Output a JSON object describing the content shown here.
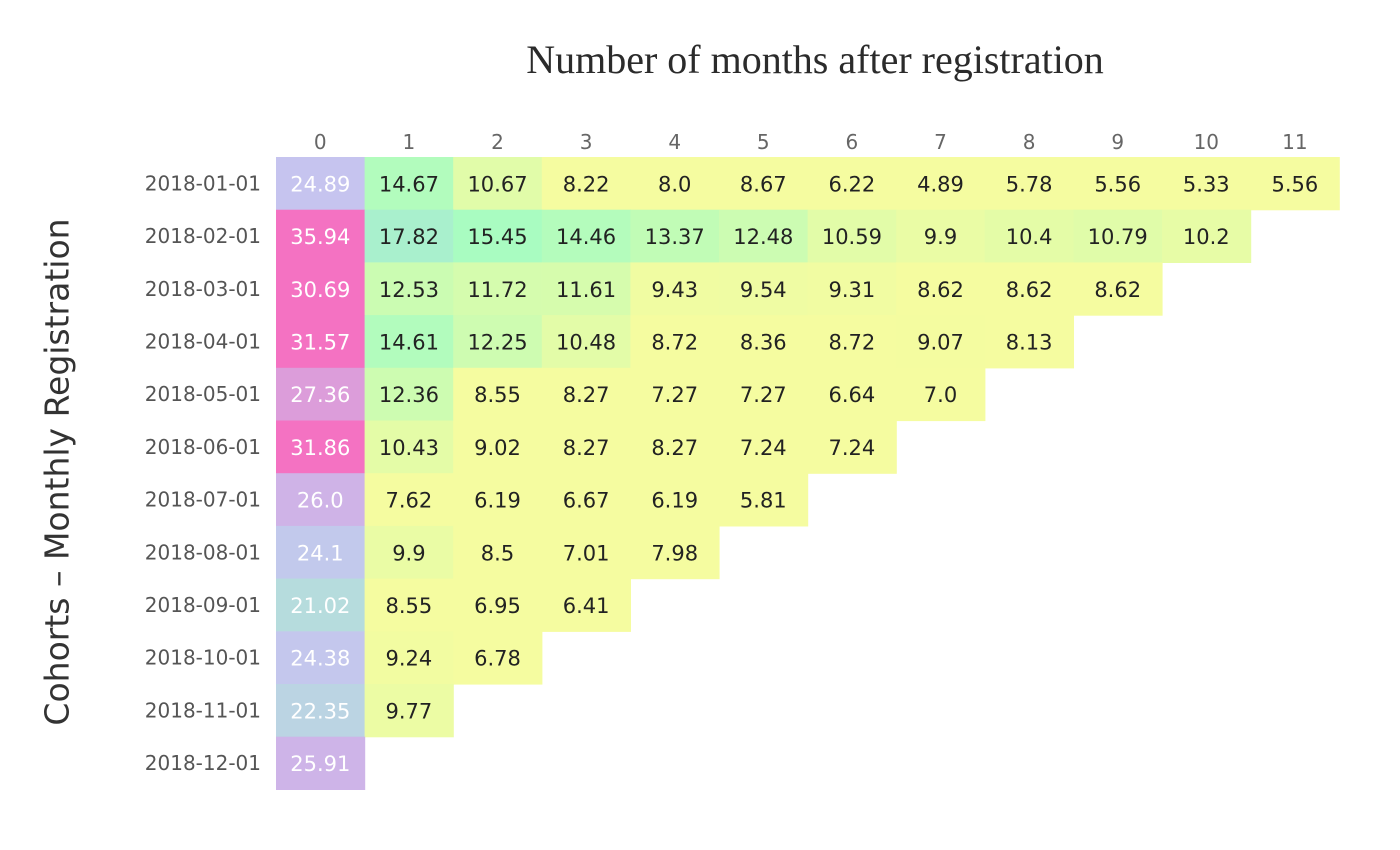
{
  "chart_data": {
    "type": "heatmap",
    "title": "Number of months after registration",
    "xlabel": "",
    "ylabel": "Cohorts – Monthly Registration",
    "columns": [
      "0",
      "1",
      "2",
      "3",
      "4",
      "5",
      "6",
      "7",
      "8",
      "9",
      "10",
      "11"
    ],
    "rows": [
      "2018-01-01",
      "2018-02-01",
      "2018-03-01",
      "2018-04-01",
      "2018-05-01",
      "2018-06-01",
      "2018-07-01",
      "2018-08-01",
      "2018-09-01",
      "2018-10-01",
      "2018-11-01",
      "2018-12-01"
    ],
    "values": [
      [
        "24.89",
        "14.67",
        "10.67",
        "8.22",
        "8.0",
        "8.67",
        "6.22",
        "4.89",
        "5.78",
        "5.56",
        "5.33",
        "5.56"
      ],
      [
        "35.94",
        "17.82",
        "15.45",
        "14.46",
        "13.37",
        "12.48",
        "10.59",
        "9.9",
        "10.4",
        "10.79",
        "10.2"
      ],
      [
        "30.69",
        "12.53",
        "11.72",
        "11.61",
        "9.43",
        "9.54",
        "9.31",
        "8.62",
        "8.62",
        "8.62"
      ],
      [
        "31.57",
        "14.61",
        "12.25",
        "10.48",
        "8.72",
        "8.36",
        "8.72",
        "9.07",
        "8.13"
      ],
      [
        "27.36",
        "12.36",
        "8.55",
        "8.27",
        "7.27",
        "7.27",
        "6.64",
        "7.0"
      ],
      [
        "31.86",
        "10.43",
        "9.02",
        "8.27",
        "8.27",
        "7.24",
        "7.24"
      ],
      [
        "26.0",
        "7.62",
        "6.19",
        "6.67",
        "6.19",
        "5.81"
      ],
      [
        "24.1",
        "9.9",
        "8.5",
        "7.01",
        "7.98"
      ],
      [
        "21.02",
        "8.55",
        "6.95",
        "6.41"
      ],
      [
        "24.38",
        "9.24",
        "6.78"
      ],
      [
        "22.35",
        "9.77"
      ],
      [
        "25.91"
      ]
    ],
    "colors": {
      "low": "#f5fca0",
      "mid": "#a2fcc4",
      "high": "#c6c3f0",
      "max": "#f472c2"
    },
    "grid": false,
    "legend": "none"
  }
}
